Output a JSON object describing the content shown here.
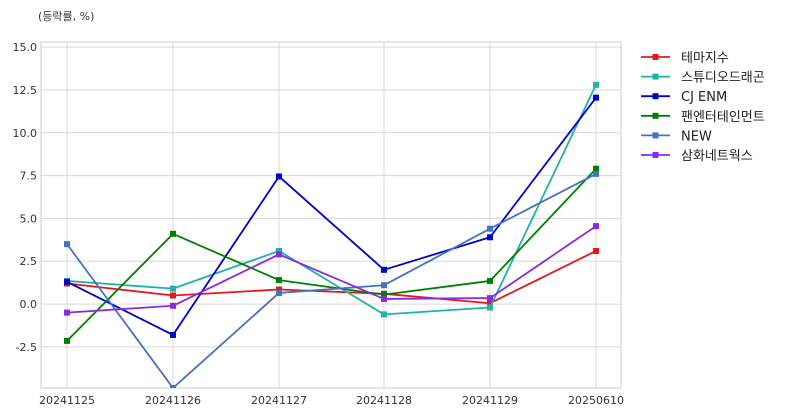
{
  "chart_data": {
    "type": "line",
    "unit_label": "(등락률, %)",
    "categories": [
      "20241125",
      "20241126",
      "20241127",
      "20241128",
      "20241129",
      "20250610"
    ],
    "ylim": [
      -4.9,
      15.3
    ],
    "yticks": [
      -2.5,
      0.0,
      2.5,
      5.0,
      7.5,
      10.0,
      12.5,
      15.0
    ],
    "ytick_labels": [
      "-2.5",
      "0.0",
      "2.5",
      "5.0",
      "7.5",
      "10.0",
      "12.5",
      "15.0"
    ],
    "grid": true,
    "legend_position": "right",
    "series": [
      {
        "name": "테마지수",
        "color": "#e31a1c",
        "values": [
          1.2,
          0.5,
          0.85,
          0.6,
          0.05,
          3.1
        ]
      },
      {
        "name": "스튜디오드래곤",
        "color": "#20b2aa",
        "values": [
          1.35,
          0.9,
          3.1,
          -0.6,
          -0.2,
          12.8
        ]
      },
      {
        "name": "CJ ENM",
        "color": "#0000cd",
        "values": [
          1.3,
          -1.8,
          7.45,
          2.0,
          3.9,
          12.05
        ]
      },
      {
        "name": "팬엔터테인먼트",
        "color": "#008000",
        "values": [
          -2.15,
          4.1,
          1.4,
          0.55,
          1.35,
          7.9
        ]
      },
      {
        "name": "NEW",
        "color": "#4472c4",
        "values": [
          3.5,
          -4.9,
          0.65,
          1.1,
          4.4,
          7.6
        ]
      },
      {
        "name": "삼화네트웍스",
        "color": "#8a2be2",
        "values": [
          -0.5,
          -0.1,
          2.9,
          0.3,
          0.35,
          4.55
        ]
      }
    ]
  }
}
